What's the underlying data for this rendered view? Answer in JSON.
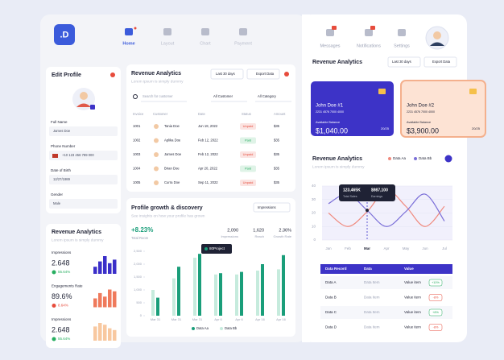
{
  "logo": ".D",
  "nav": [
    "Home",
    "Layout",
    "Chart",
    "Payment"
  ],
  "top_nav": [
    "Messages",
    "Notifications",
    "Settings"
  ],
  "profile": {
    "title": "Edit Profile",
    "fields": [
      {
        "label": "Full Name",
        "value": "James Doe"
      },
      {
        "label": "Phone Number",
        "value": "+10 123 456 789 000"
      },
      {
        "label": "Date of Birth",
        "value": "12/27/1989"
      },
      {
        "label": "Gender",
        "value": "Male"
      }
    ]
  },
  "mini": {
    "title": "Revenue Analytics",
    "subtitle": "Lorem ipsum is simply dummy",
    "stats": [
      {
        "label": "Impressions",
        "value": "2.648",
        "change": "55.64%",
        "change_color": "#27ae60",
        "color": "#3b2fc9",
        "bars": [
          4,
          7,
          10,
          6,
          8
        ]
      },
      {
        "label": "Engagements Rate",
        "value": "89.6%",
        "change": "8.64%",
        "change_color": "#e74c3c",
        "color": "#ef7a5c",
        "bars": [
          5,
          8,
          6,
          10,
          9
        ]
      },
      {
        "label": "Impressions",
        "value": "2.648",
        "change": "55.64%",
        "change_color": "#27ae60",
        "color": "#f8c8a0",
        "bars": [
          8,
          10,
          9,
          7,
          6
        ]
      }
    ]
  },
  "table_card": {
    "title": "Revenue Analytics",
    "subtitle": "Lorem ipsum is simply dummy",
    "range": "Last 30 days",
    "export": "Export Data",
    "search": "Search for customer",
    "filters": [
      "All Customer",
      "All Category"
    ],
    "columns": [
      "Invoice",
      "Customer",
      "Date",
      "Status",
      "Amount"
    ],
    "rows": [
      {
        "invoice": "1001",
        "customer": "Tania Doe",
        "date": "Jun 18, 2022",
        "status": "Unpaid",
        "status_color": "#e74c3c",
        "amount": "$35"
      },
      {
        "invoice": "1002",
        "customer": "Aplika Doe",
        "date": "Feb 12, 2022",
        "status": "Paid",
        "status_color": "#27ae60",
        "amount": "$35"
      },
      {
        "invoice": "1003",
        "customer": "James Doe",
        "date": "Feb 12, 2022",
        "status": "Unpaid",
        "status_color": "#e74c3c",
        "amount": "$35"
      },
      {
        "invoice": "1004",
        "customer": "Brian Doe",
        "date": "Apr 20, 2022",
        "status": "Paid",
        "status_color": "#27ae60",
        "amount": "$35"
      },
      {
        "invoice": "1005",
        "customer": "Curra Doe",
        "date": "Sep 11, 2022",
        "status": "Unpaid",
        "status_color": "#e74c3c",
        "amount": "$35"
      }
    ]
  },
  "growth": {
    "title": "Profile growth & discovery",
    "subtitle": "See insights on how your profile has grown",
    "dropdown": "Impressions",
    "headline": "+8.23%",
    "headline_label": "Total Room",
    "stats": [
      {
        "value": "2,090",
        "label": "Impressions"
      },
      {
        "value": "1,620",
        "label": "Reach"
      },
      {
        "value": "2.36%",
        "label": "Growth Rate"
      }
    ]
  },
  "right": {
    "title": "Revenue Analytics",
    "range": "Last 30 days",
    "export": "Export Data",
    "cards": [
      {
        "name": "John Doe #1",
        "number": "2231 4576 7000 4000",
        "balance_label": "Available Balance",
        "balance": "$1,040.00",
        "expiry": "20/25"
      },
      {
        "name": "John Doe #2",
        "number": "2231 4576 7000 4000",
        "balance_label": "Available Balance",
        "balance": "$3,900.00",
        "expiry": "20/25"
      }
    ]
  },
  "chart_data": [
    {
      "type": "bar",
      "categories": [
        "Mar 31",
        "Mar 31",
        "Mar 31",
        "Apr 6",
        "Apr 6",
        "Apr 16",
        "Apr 16"
      ],
      "series": [
        {
          "name": "Data Aa",
          "color": "#1a9e7a",
          "values": [
            700,
            1900,
            2400,
            1650,
            1700,
            2000,
            2350
          ]
        },
        {
          "name": "Data Bb",
          "color": "#c6ebdd",
          "values": [
            1000,
            1450,
            2250,
            1600,
            1600,
            1750,
            1800
          ]
        }
      ],
      "ylim": [
        0,
        2500
      ],
      "yticks": [
        0,
        500,
        {
          "value": 1000,
          "label": "1,000"
        },
        {
          "value": 1500,
          "label": "1,500"
        },
        {
          "value": 2000,
          "label": "2,000"
        },
        {
          "value": 2500,
          "label": "2,500"
        }
      ],
      "annotation": "80Project"
    },
    {
      "type": "line",
      "title": "Revenue Analytics",
      "subtitle": "Lorem ipsum is simply dummy",
      "categories": [
        "Jan",
        "Feb",
        "Mar",
        "Apr",
        "May",
        "Jun",
        "Jul"
      ],
      "series": [
        {
          "name": "Data Aa",
          "color": "#f08a7e",
          "values": [
            20,
            10,
            21,
            37,
            25,
            10,
            25
          ]
        },
        {
          "name": "Data Bb",
          "color": "#7b6fd8",
          "values": [
            27,
            34,
            22,
            10,
            21,
            34,
            14
          ]
        }
      ],
      "ylim": [
        0,
        40
      ],
      "yticks": [
        0,
        10,
        20,
        30,
        40
      ],
      "tooltip": [
        {
          "value": "123,465K",
          "label": "Total Sales"
        },
        {
          "value": "$987,100",
          "label": "Earnings"
        }
      ]
    }
  ],
  "records": {
    "columns": [
      "Data Record",
      "Data",
      "Value"
    ],
    "rows": [
      {
        "record": "Data A",
        "data": "Data Item",
        "value": "Value item",
        "change": "+10%"
      },
      {
        "record": "Data B",
        "data": "Data Item",
        "value": "Value item",
        "change": "-8%"
      },
      {
        "record": "Data C",
        "data": "Data Item",
        "value": "Value item",
        "change": "+8%"
      },
      {
        "record": "Data D",
        "data": "Data Item",
        "value": "Value item",
        "change": "-8%"
      }
    ]
  }
}
